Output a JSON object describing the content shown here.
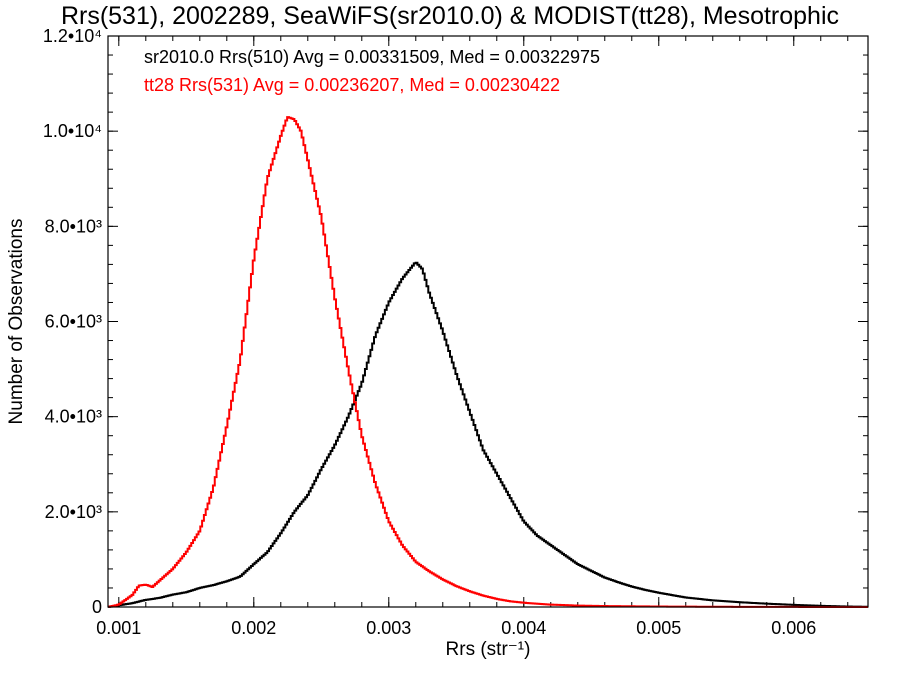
{
  "chart_data": {
    "type": "line",
    "title": "Rrs(531), 2002289, SeaWiFS(sr2010.0) & MODIST(tt28), Mesotrophic",
    "xlabel": "Rrs (str⁻¹)",
    "ylabel": "Number of Observations",
    "xlim": [
      0.00092,
      0.00655
    ],
    "ylim": [
      0,
      12000
    ],
    "x_ticks": [
      {
        "value": 0.001,
        "label": "0.001"
      },
      {
        "value": 0.002,
        "label": "0.002"
      },
      {
        "value": 0.003,
        "label": "0.003"
      },
      {
        "value": 0.004,
        "label": "0.004"
      },
      {
        "value": 0.005,
        "label": "0.005"
      },
      {
        "value": 0.006,
        "label": "0.006"
      }
    ],
    "y_ticks": [
      {
        "value": 0,
        "label": "0"
      },
      {
        "value": 2000,
        "label": "2.0•10³"
      },
      {
        "value": 4000,
        "label": "4.0•10³"
      },
      {
        "value": 6000,
        "label": "6.0•10³"
      },
      {
        "value": 8000,
        "label": "8.0•10³"
      },
      {
        "value": 10000,
        "label": "1.0•10⁴"
      },
      {
        "value": 12000,
        "label": "1.2•10⁴"
      }
    ],
    "annotations": [
      {
        "text": "sr2010.0 Rrs(510) Avg = 0.00331509, Med = 0.00322975",
        "color": "#000000"
      },
      {
        "text": "tt28 Rrs(531) Avg = 0.00236207, Med = 0.00230422",
        "color": "#ff0000"
      }
    ],
    "series": [
      {
        "color": "#000000",
        "x": [
          0.00092,
          0.0011,
          0.0012,
          0.0013,
          0.0014,
          0.0015,
          0.0016,
          0.0017,
          0.0018,
          0.0019,
          0.002,
          0.0021,
          0.0022,
          0.0023,
          0.0024,
          0.0025,
          0.0026,
          0.0027,
          0.0028,
          0.0029,
          0.003,
          0.0031,
          0.0032,
          0.00325,
          0.0033,
          0.0034,
          0.0035,
          0.0036,
          0.0037,
          0.0038,
          0.0039,
          0.004,
          0.0041,
          0.0042,
          0.0043,
          0.0044,
          0.0045,
          0.0046,
          0.0047,
          0.0048,
          0.0049,
          0.005,
          0.0052,
          0.0054,
          0.0056,
          0.0058,
          0.006,
          0.0062,
          0.0064,
          0.00655
        ],
        "y": [
          0,
          80,
          150,
          190,
          260,
          310,
          400,
          460,
          540,
          640,
          900,
          1150,
          1550,
          2000,
          2350,
          2900,
          3400,
          4000,
          4700,
          5700,
          6400,
          6900,
          7250,
          7100,
          6600,
          5800,
          4900,
          4100,
          3300,
          2800,
          2300,
          1800,
          1500,
          1300,
          1100,
          900,
          760,
          620,
          520,
          430,
          360,
          300,
          200,
          140,
          100,
          70,
          45,
          25,
          10,
          5
        ]
      },
      {
        "color": "#ff0000",
        "x": [
          0.00092,
          0.001,
          0.0011,
          0.00115,
          0.0012,
          0.00125,
          0.0013,
          0.0014,
          0.0015,
          0.0016,
          0.0017,
          0.0018,
          0.0019,
          0.002,
          0.0021,
          0.0022,
          0.00225,
          0.0023,
          0.00235,
          0.0024,
          0.0025,
          0.0026,
          0.0027,
          0.0028,
          0.0029,
          0.003,
          0.0031,
          0.0032,
          0.0033,
          0.0034,
          0.0035,
          0.0036,
          0.0037,
          0.0038,
          0.0039,
          0.004,
          0.0042,
          0.0044,
          0.0046,
          0.0048,
          0.005,
          0.0054,
          0.0058,
          0.00655
        ],
        "y": [
          0,
          50,
          250,
          450,
          470,
          420,
          550,
          800,
          1150,
          1600,
          2500,
          3800,
          5200,
          7300,
          9000,
          9900,
          10300,
          10250,
          10000,
          9400,
          8200,
          6500,
          5000,
          3600,
          2600,
          1800,
          1300,
          950,
          750,
          580,
          440,
          330,
          240,
          170,
          120,
          90,
          50,
          30,
          20,
          15,
          10,
          5,
          2,
          0
        ]
      }
    ]
  }
}
